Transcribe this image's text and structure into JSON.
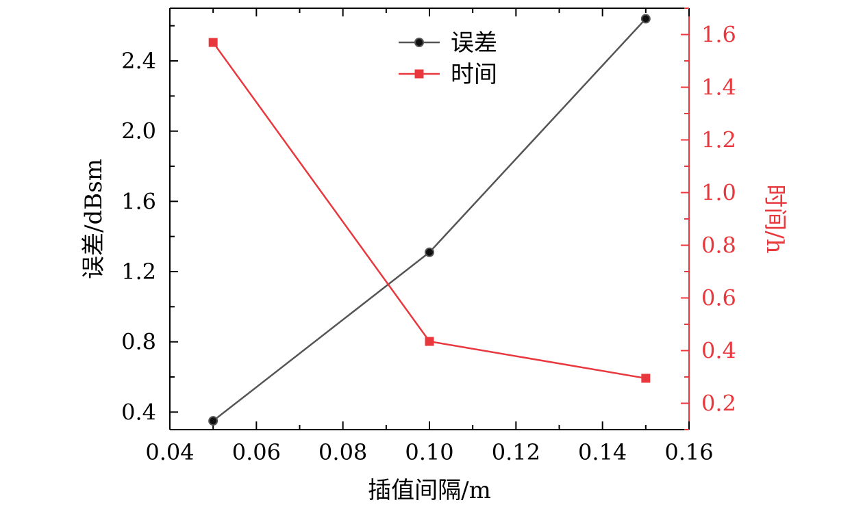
{
  "chart_data": {
    "type": "line",
    "title": "",
    "xlabel": "插值间隔/m",
    "ylabel": "误差/dBsm",
    "y2label": "时间/h",
    "xlim": [
      0.04,
      0.16
    ],
    "ylim": [
      0.3,
      2.7
    ],
    "y2lim": [
      0.1,
      1.7
    ],
    "x_ticks": [
      "0.04",
      "0.06",
      "0.08",
      "0.10",
      "0.12",
      "0.14",
      "0.16"
    ],
    "y_ticks": [
      "0.4",
      "0.8",
      "1.2",
      "1.6",
      "2.0",
      "2.4"
    ],
    "y2_ticks": [
      "0.2",
      "0.4",
      "0.6",
      "0.8",
      "1.0",
      "1.2",
      "1.4",
      "1.6"
    ],
    "legend_position": "top-center",
    "series": [
      {
        "name": "误差",
        "axis": "left",
        "marker": "circle",
        "color": "#555555",
        "x": [
          0.05,
          0.1,
          0.15
        ],
        "values": [
          0.35,
          1.31,
          2.64
        ]
      },
      {
        "name": "时间",
        "axis": "right",
        "marker": "square",
        "color": "#e8383d",
        "x": [
          0.05,
          0.1,
          0.15
        ],
        "values": [
          1.57,
          0.435,
          0.295
        ]
      }
    ]
  },
  "colors": {
    "axis": "#000000",
    "right_axis": "#e8383d",
    "error_line": "#555555",
    "time_line": "#e8383d"
  }
}
